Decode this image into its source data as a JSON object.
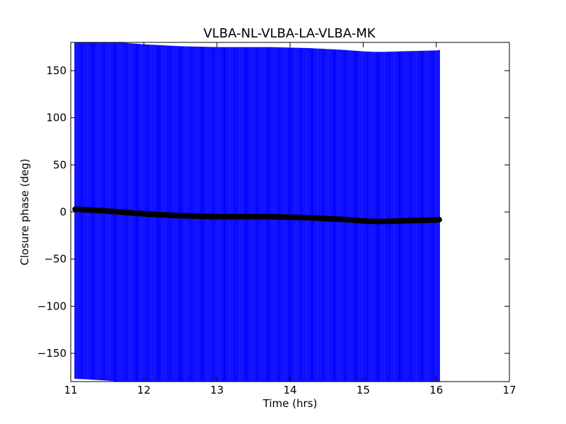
{
  "chart_data": {
    "type": "scatter",
    "title": "VLBA-NL-VLBA-LA-VLBA-MK",
    "xlabel": "Time (hrs)",
    "ylabel": "Closure phase (deg)",
    "xlim": [
      11,
      17
    ],
    "ylim": [
      -180,
      180
    ],
    "xticks": [
      11,
      12,
      13,
      14,
      15,
      16,
      17
    ],
    "xtick_labels": [
      "11",
      "12",
      "13",
      "14",
      "15",
      "16",
      "17"
    ],
    "yticks": [
      150,
      100,
      50,
      0,
      -50,
      -100,
      -150
    ],
    "ytick_labels": [
      "150",
      "100",
      "50",
      "0",
      "−50",
      "−100",
      "−150"
    ],
    "grid": false,
    "errorbar_color": "#0000ff",
    "marker_color": "#000000",
    "series": [
      {
        "x": [
          11.06,
          11.3,
          11.5,
          11.75,
          12.0,
          12.25,
          12.5,
          12.75,
          13.0,
          13.25,
          13.5,
          13.75,
          14.0,
          14.25,
          14.5,
          14.75,
          15.0,
          15.15,
          15.3,
          15.5,
          15.75,
          16.0,
          16.05
        ],
        "y": [
          3,
          2,
          1,
          -0.5,
          -2,
          -3,
          -4,
          -4.5,
          -5,
          -5,
          -5,
          -5,
          -5.5,
          -6,
          -7,
          -8,
          -9.5,
          -10,
          -10,
          -9.5,
          -9,
          -8.5,
          -8
        ],
        "yerr": [
          180,
          180,
          180,
          180,
          180,
          180,
          180,
          180,
          180,
          180,
          180,
          180,
          180,
          180,
          180,
          180,
          180,
          180,
          180,
          180,
          180,
          180,
          180
        ]
      }
    ]
  }
}
